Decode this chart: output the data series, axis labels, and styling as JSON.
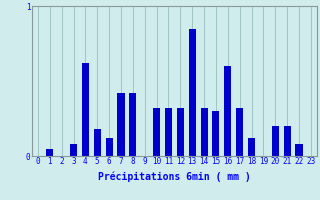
{
  "title": "",
  "xlabel": "Précipitations 6min ( mm )",
  "categories": [
    0,
    1,
    2,
    3,
    4,
    5,
    6,
    7,
    8,
    9,
    10,
    11,
    12,
    13,
    14,
    15,
    16,
    17,
    18,
    19,
    20,
    21,
    22,
    23
  ],
  "values": [
    0.0,
    0.05,
    0.0,
    0.08,
    0.62,
    0.18,
    0.12,
    0.42,
    0.42,
    0.0,
    0.32,
    0.32,
    0.32,
    0.85,
    0.32,
    0.3,
    0.6,
    0.32,
    0.12,
    0.0,
    0.2,
    0.2,
    0.08,
    0.0
  ],
  "bar_color": "#0000cc",
  "bg_color": "#d0ecec",
  "grid_color": "#a0c4c4",
  "axis_color": "#889999",
  "ylim": [
    0,
    1.0
  ],
  "yticks": [
    0,
    1
  ],
  "xlabel_fontsize": 7,
  "tick_fontsize": 5.5
}
